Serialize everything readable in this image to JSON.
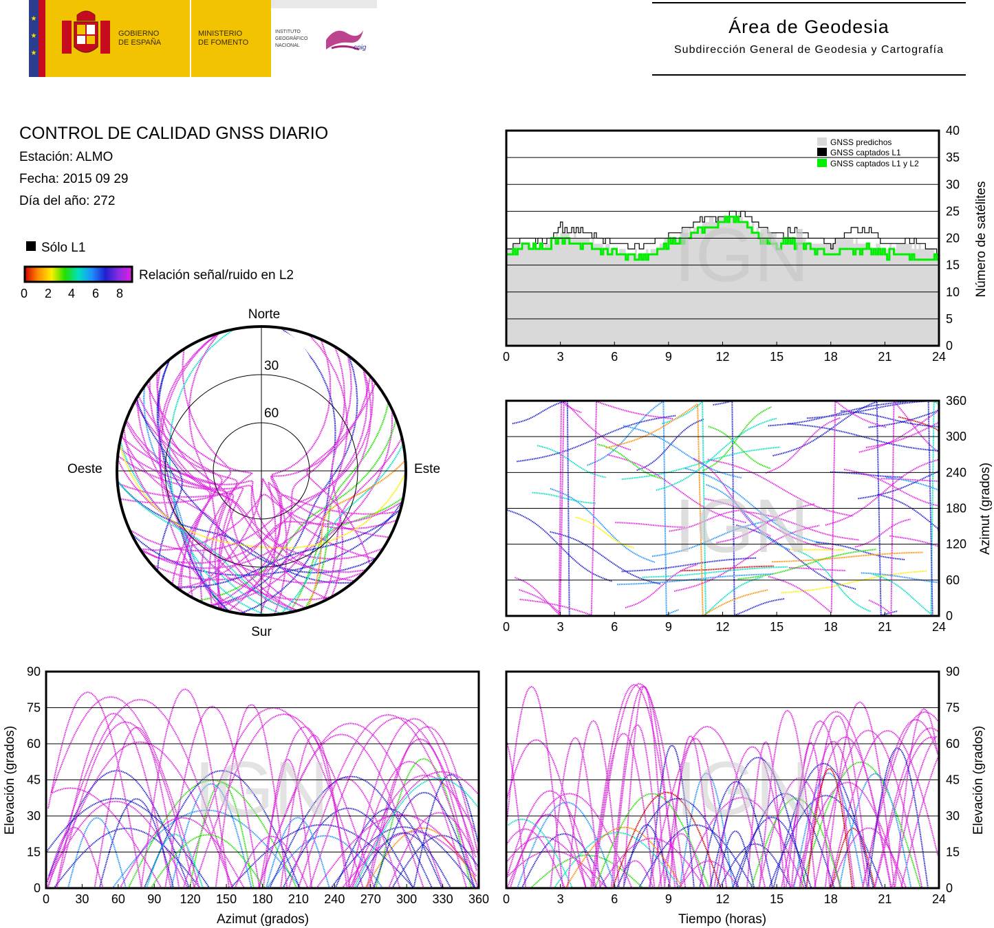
{
  "header": {
    "gov_line1": "GOBIERNO",
    "gov_line2": "DE ESPAÑA",
    "ministry_line1": "MINISTERIO",
    "ministry_line2": "DE FOMENTO",
    "ign_line1": "INSTITUTO",
    "ign_line2": "GEOGRÁFICO",
    "ign_line3": "NACIONAL",
    "cnig_logo_text": "cnig",
    "area_title": "Área de Geodesia",
    "area_subtitle": "Subdirección General de Geodesia y Cartografía"
  },
  "report": {
    "title": "CONTROL DE CALIDAD GNSS DIARIO",
    "station": "Estación: ALMO",
    "date": "Fecha: 2015 09 29",
    "doy": "Día del año: 272"
  },
  "legend": {
    "l1_only": "Sólo L1",
    "snr_label": "Relación señal/ruido en L2",
    "snr_ticks": [
      "0",
      "2",
      "4",
      "6",
      "8"
    ],
    "snr_colors": [
      "#d40000",
      "#ff8c00",
      "#ffee00",
      "#22e000",
      "#00e0c0",
      "#1e90ff",
      "#2020d0",
      "#8a2be2",
      "#e020e0"
    ]
  },
  "watermark": "IGN",
  "colors": {
    "predicted": "#d9d9d9",
    "l1": "#000000",
    "l1l2": "#00ee00",
    "grid": "#000000"
  },
  "chart_data": [
    {
      "id": "sat-count",
      "type": "area",
      "ylabel": "Número de satélites",
      "xlim": [
        0,
        24
      ],
      "ylim": [
        0,
        40
      ],
      "xticks": [
        "0",
        "3",
        "6",
        "9",
        "12",
        "15",
        "18",
        "21",
        "24"
      ],
      "yticks": [
        "0",
        "5",
        "10",
        "15",
        "20",
        "25",
        "30",
        "35",
        "40"
      ],
      "legend": [
        "GNSS predichos",
        "GNSS captados L1",
        "GNSS captados L1 y L2"
      ],
      "x": [
        0,
        1,
        2,
        3,
        4,
        5,
        6,
        7,
        8,
        9,
        10,
        11,
        12,
        13,
        14,
        15,
        16,
        17,
        18,
        19,
        20,
        21,
        22,
        23,
        24
      ],
      "series": [
        {
          "name": "GNSS predichos",
          "values": [
            18,
            19,
            18,
            21,
            20,
            19,
            18,
            17,
            18,
            20,
            21,
            23,
            24,
            24,
            21,
            20,
            20,
            19,
            19,
            20,
            19,
            18,
            19,
            18,
            17
          ]
        },
        {
          "name": "GNSS captados L1",
          "values": [
            18,
            20,
            19,
            22,
            21,
            20,
            19,
            18,
            19,
            21,
            22,
            24,
            24,
            25,
            22,
            21,
            21,
            20,
            19,
            21,
            22,
            19,
            20,
            19,
            17
          ]
        },
        {
          "name": "GNSS captados L1 y L2",
          "values": [
            17,
            19,
            18,
            20,
            19,
            18,
            17,
            16,
            17,
            19,
            20,
            22,
            23,
            24,
            20,
            19,
            19,
            18,
            17,
            18,
            18,
            17,
            17,
            16,
            16
          ]
        }
      ]
    },
    {
      "id": "azimuth-time",
      "type": "scatter",
      "ylabel": "Azimut (grados)",
      "xlim": [
        0,
        24
      ],
      "ylim": [
        0,
        360
      ],
      "xticks": [
        "0",
        "3",
        "6",
        "9",
        "12",
        "15",
        "18",
        "21",
        "24"
      ],
      "yticks": [
        "0",
        "60",
        "120",
        "180",
        "240",
        "300",
        "360"
      ]
    },
    {
      "id": "skyplot",
      "type": "scatter",
      "labels": {
        "north": "Norte",
        "south": "Sur",
        "east": "Este",
        "west": "Oeste"
      },
      "ring_labels": [
        "30",
        "60"
      ]
    },
    {
      "id": "elev-azimuth",
      "type": "scatter",
      "xlabel": "Azimut (grados)",
      "ylabel": "Elevación (grados)",
      "xlim": [
        0,
        360
      ],
      "ylim": [
        0,
        90
      ],
      "xticks": [
        "0",
        "30",
        "60",
        "90",
        "120",
        "150",
        "180",
        "210",
        "240",
        "270",
        "300",
        "330",
        "360"
      ],
      "yticks": [
        "0",
        "15",
        "30",
        "45",
        "60",
        "75",
        "90"
      ]
    },
    {
      "id": "elev-time",
      "type": "scatter",
      "xlabel": "Tiempo (horas)",
      "ylabel": "Elevación (grados)",
      "xlim": [
        0,
        24
      ],
      "ylim": [
        0,
        90
      ],
      "xticks": [
        "0",
        "3",
        "6",
        "9",
        "12",
        "15",
        "18",
        "21",
        "24"
      ],
      "yticks": [
        "0",
        "15",
        "30",
        "45",
        "60",
        "75",
        "90"
      ]
    }
  ]
}
